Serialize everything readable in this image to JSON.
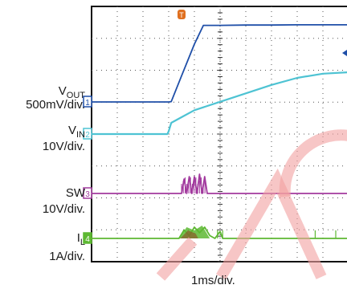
{
  "chart_data": {
    "type": "line",
    "title": "",
    "xlabel": "1ms/div.",
    "grid": true,
    "x_divisions": 10,
    "y_divisions": 8,
    "trigger_marker": "T",
    "colors": {
      "vout": "#1f4fa8",
      "vin": "#4ec3d3",
      "sw": "#a23a9e",
      "il": "#5db832",
      "marker_edge": "#3d7a24",
      "trigger": "#e07020",
      "watermark": "#f2a0a0"
    },
    "series": [
      {
        "name": "VOUT",
        "name_base": "V",
        "name_sub": "OUT",
        "scale": "500mV/div.",
        "marker": "1",
        "color": "#1f4fa8",
        "points": [
          [
            0,
            0
          ],
          [
            1,
            0
          ],
          [
            2,
            0
          ],
          [
            3,
            0
          ],
          [
            3.1,
            0.01
          ],
          [
            3.5,
            0.9
          ],
          [
            4.0,
            2.0
          ],
          [
            4.35,
            2.65
          ],
          [
            5,
            2.65
          ],
          [
            6,
            2.66
          ],
          [
            7,
            2.66
          ],
          [
            8,
            2.67
          ],
          [
            9,
            2.67
          ],
          [
            10,
            2.67
          ]
        ]
      },
      {
        "name": "VIN",
        "name_base": "V",
        "name_sub": "IN",
        "scale": "10V/div.",
        "marker": "2",
        "color": "#4ec3d3",
        "points": [
          [
            0,
            0
          ],
          [
            1,
            0
          ],
          [
            2,
            0
          ],
          [
            2.95,
            0
          ],
          [
            3.0,
            0.1
          ],
          [
            3.1,
            0.4
          ],
          [
            3.5,
            0.6
          ],
          [
            4,
            0.85
          ],
          [
            5,
            1.15
          ],
          [
            6,
            1.45
          ],
          [
            7,
            1.75
          ],
          [
            8,
            2.0
          ],
          [
            9,
            2.15
          ],
          [
            10,
            2.2
          ]
        ]
      },
      {
        "name": "SW",
        "scale": "10V/div.",
        "marker": "3",
        "color": "#a23a9e",
        "points": [
          [
            0,
            0
          ],
          [
            3.5,
            0
          ],
          [
            3.6,
            0.6
          ],
          [
            3.7,
            0
          ],
          [
            3.8,
            0.7
          ],
          [
            3.9,
            0
          ],
          [
            4.0,
            0.7
          ],
          [
            4.1,
            0
          ],
          [
            4.2,
            0.8
          ],
          [
            4.3,
            0
          ],
          [
            4.4,
            0.7
          ],
          [
            4.5,
            0
          ],
          [
            10,
            0
          ]
        ]
      },
      {
        "name": "IL",
        "name_base": "I",
        "name_sub": "L",
        "scale": "1A/div.",
        "marker": "4",
        "color": "#5db832",
        "points": [
          [
            0,
            0
          ],
          [
            3.4,
            0
          ],
          [
            3.6,
            0.3
          ],
          [
            3.8,
            0.1
          ],
          [
            4.0,
            0.4
          ],
          [
            4.2,
            0.2
          ],
          [
            4.4,
            0.4
          ],
          [
            4.6,
            0.1
          ],
          [
            4.8,
            0
          ],
          [
            5.0,
            0.25
          ],
          [
            5.1,
            0
          ],
          [
            10,
            0
          ]
        ]
      }
    ]
  }
}
